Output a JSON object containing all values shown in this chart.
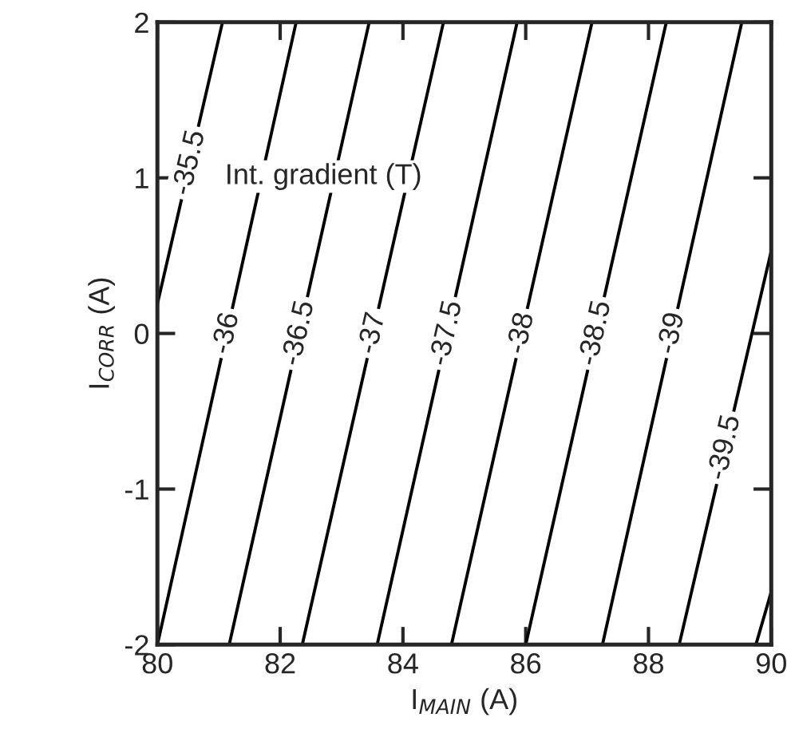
{
  "chart_data": {
    "type": "line",
    "xlabel": "I$_{MAIN}$ (A)",
    "ylabel": "I$_{CORR}$ (A)",
    "annotations": [
      "Int. gradient (T)"
    ],
    "xlim": [
      80,
      90
    ],
    "xticks": [
      80,
      82,
      84,
      86,
      88,
      90
    ],
    "ylim": [
      -2,
      2
    ],
    "yticks": [
      -2,
      -1,
      0,
      1,
      2
    ],
    "grid": false,
    "legend": false,
    "marker": "none",
    "line_style": "solid",
    "series": [
      {
        "name": "-35.5",
        "color": "#000000",
        "x": [
          80,
          81.06
        ],
        "values": [
          0.19,
          2
        ]
      },
      {
        "name": "-36",
        "color": "#000000",
        "x": [
          80.0,
          82.26
        ],
        "values": [
          -2,
          2
        ]
      },
      {
        "name": "-36.5",
        "color": "#000000",
        "x": [
          81.17,
          83.45
        ],
        "values": [
          -2,
          2
        ]
      },
      {
        "name": "-37",
        "color": "#000000",
        "x": [
          82.36,
          84.66
        ],
        "values": [
          -2,
          2
        ]
      },
      {
        "name": "-37.5",
        "color": "#000000",
        "x": [
          83.58,
          85.86
        ],
        "values": [
          -2,
          2
        ]
      },
      {
        "name": "-38",
        "color": "#000000",
        "x": [
          84.79,
          87.08
        ],
        "values": [
          -2,
          2
        ]
      },
      {
        "name": "-38.5",
        "color": "#000000",
        "x": [
          86.0,
          88.29
        ],
        "values": [
          -2,
          2
        ]
      },
      {
        "name": "-39",
        "color": "#000000",
        "x": [
          87.25,
          89.52
        ],
        "values": [
          -2,
          2
        ]
      },
      {
        "name": "-39.5",
        "color": "#000000",
        "x": [
          88.5,
          90
        ],
        "values": [
          -2,
          0.53
        ]
      },
      {
        "color": "#000000",
        "x": [
          89.75,
          90
        ],
        "values": [
          -2,
          -1.66
        ]
      }
    ]
  }
}
